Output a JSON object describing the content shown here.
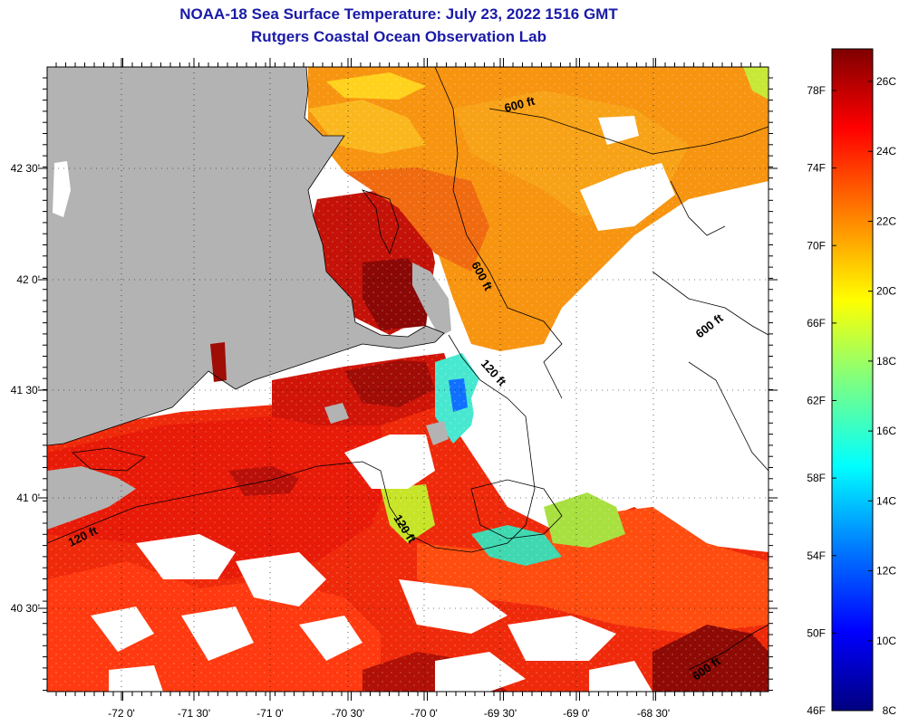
{
  "title": {
    "line1": "NOAA-18 Sea Surface Temperature:  July 23, 2022 1516 GMT",
    "line2": "Rutgers Coastal Ocean Observation Lab"
  },
  "map": {
    "lat_labels": [
      "42 30'",
      "42 0'",
      "41 30'",
      "41 0'",
      "40 30'"
    ],
    "lon_labels": [
      "-72 0'",
      "-71 30'",
      "-71 0'",
      "-70 30'",
      "-70 0'",
      "-69 30'",
      "-69 0'",
      "-68 30'"
    ],
    "contour_labels": [
      "600 ft",
      "600 ft",
      "600 ft",
      "600 ft",
      "120 ft",
      "120 ft",
      "120 ft"
    ],
    "colors": {
      "land": "#b3b3b3",
      "cloud": "#ffffff"
    }
  },
  "colorbar": {
    "fahrenheit_labels": [
      "78F",
      "74F",
      "70F",
      "66F",
      "62F",
      "58F",
      "54F",
      "50F",
      "46F"
    ],
    "celsius_labels": [
      "26C",
      "24C",
      "22C",
      "20C",
      "18C",
      "16C",
      "14C",
      "12C",
      "10C",
      "8C"
    ],
    "gradient": [
      "#00007f",
      "#0000ff",
      "#007fff",
      "#00ffff",
      "#7fff7f",
      "#ffff00",
      "#ff7f00",
      "#ff0000",
      "#7f0000"
    ]
  }
}
